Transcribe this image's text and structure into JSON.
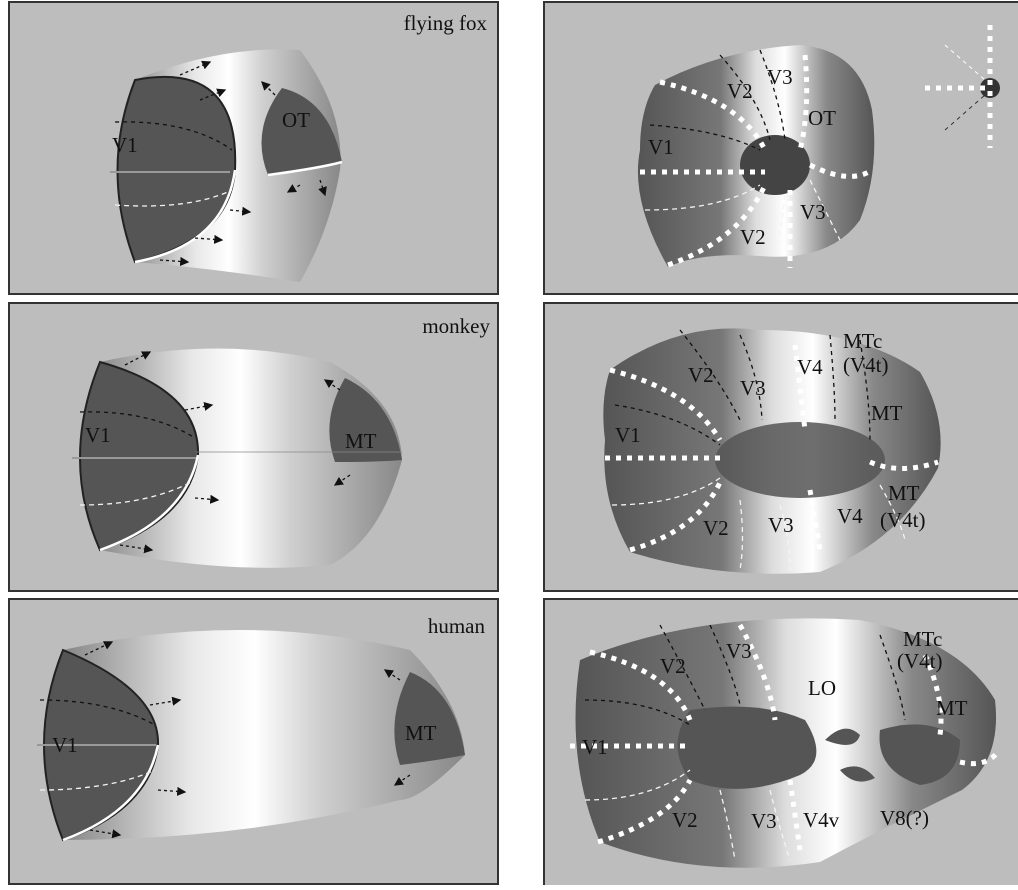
{
  "panels": [
    {
      "title": "flying fox",
      "labels": [
        "V1",
        "OT"
      ]
    },
    {
      "title": "monkey",
      "labels": [
        "V1",
        "MT"
      ]
    },
    {
      "title": "human",
      "labels": [
        "V1",
        "MT"
      ]
    }
  ],
  "maps": [
    {
      "labels": [
        "V2",
        "V3",
        "OT",
        "V1",
        "V3",
        "V2"
      ]
    },
    {
      "labels": [
        "MTc",
        "(V4t)",
        "V3",
        "V4",
        "V2",
        "MT",
        "V1",
        "MT",
        "(V4t)",
        "V2",
        "V3",
        "V4"
      ]
    },
    {
      "labels": [
        "MTc",
        "(V4t)",
        "V3",
        "V2",
        "LO",
        "MT",
        "V1",
        "V2",
        "V3",
        "V4v",
        "V8(?)"
      ]
    }
  ]
}
